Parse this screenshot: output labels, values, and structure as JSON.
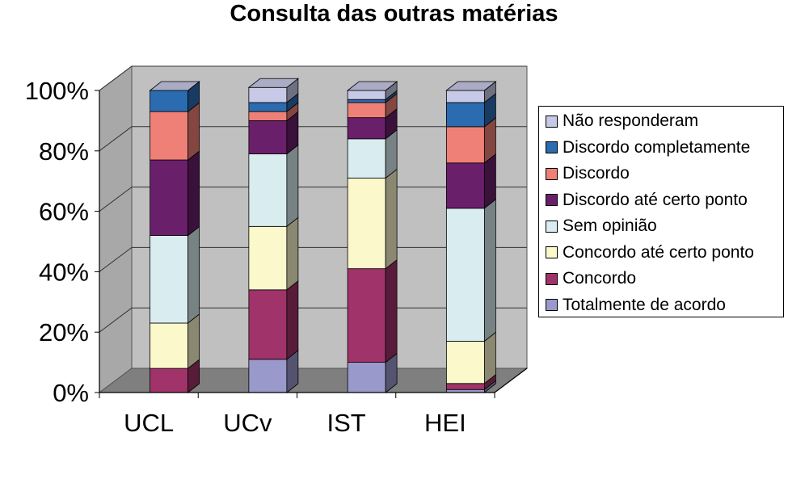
{
  "chart_data": {
    "type": "bar",
    "stacked": true,
    "percent": true,
    "three_d": true,
    "title": "Consulta das outras matérias",
    "categories": [
      "UCL",
      "UCv",
      "IST",
      "HEI"
    ],
    "y_ticks": [
      "0%",
      "20%",
      "40%",
      "60%",
      "80%",
      "100%"
    ],
    "ylim": [
      0,
      100
    ],
    "grid": true,
    "legend_position": "right",
    "series": [
      {
        "name": "Totalmente de acordo",
        "color": "#9999cc",
        "values": [
          0,
          11,
          10,
          1
        ]
      },
      {
        "name": "Concordo",
        "color": "#a0336a",
        "values": [
          8,
          23,
          31,
          2
        ]
      },
      {
        "name": "Concordo até certo ponto",
        "color": "#fbf8cc",
        "values": [
          15,
          21,
          30,
          14
        ]
      },
      {
        "name": "Sem opinião",
        "color": "#d9edf0",
        "values": [
          29,
          24,
          13,
          44
        ]
      },
      {
        "name": "Discordo até certo ponto",
        "color": "#6a1f6b",
        "values": [
          25,
          11,
          7,
          15
        ]
      },
      {
        "name": "Discordo",
        "color": "#ef8077",
        "values": [
          16,
          3,
          5,
          12
        ]
      },
      {
        "name": "Discordo completamente",
        "color": "#2b6bb0",
        "values": [
          7,
          3,
          1,
          8
        ]
      },
      {
        "name": "Não responderam",
        "color": "#c8c9e6",
        "values": [
          0,
          5,
          3,
          4
        ]
      }
    ]
  }
}
